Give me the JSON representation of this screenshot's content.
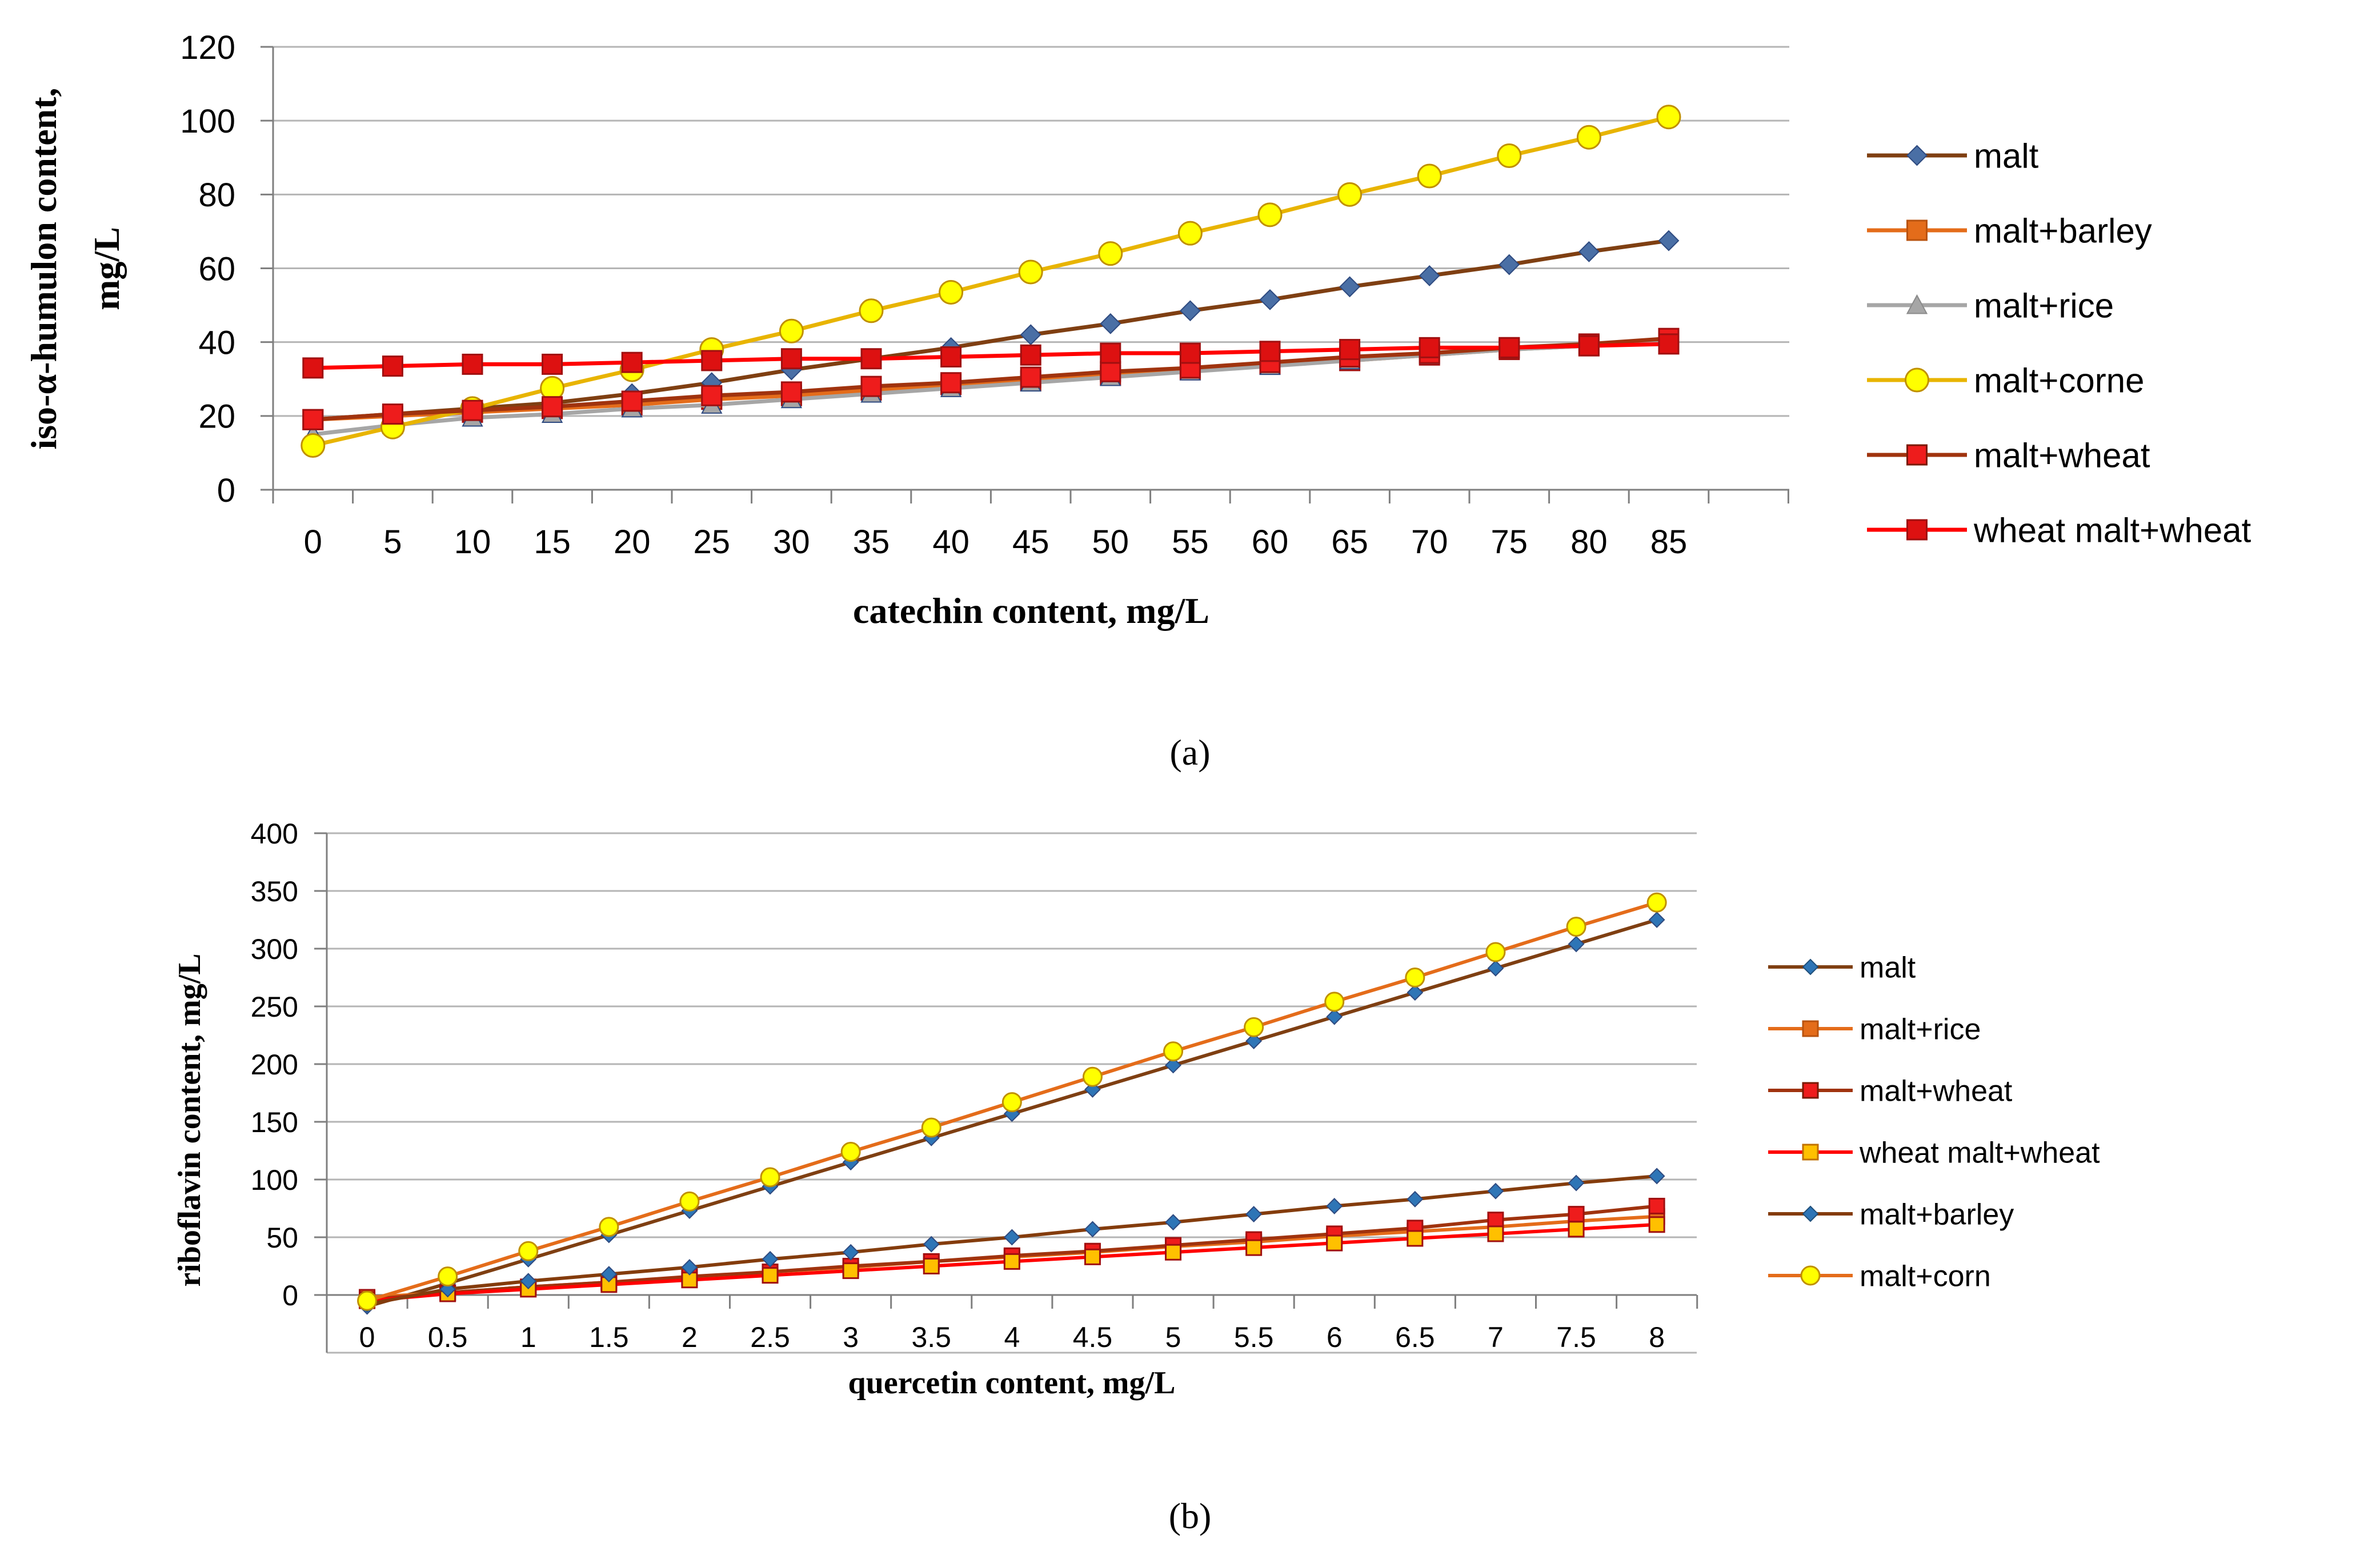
{
  "chart_data": [
    {
      "id": "a",
      "type": "line",
      "caption": "(a)",
      "xlabel": "catechin content, mg/L",
      "ylabel_lines": [
        "iso-α-humulon content,",
        "mg/L"
      ],
      "ylim": [
        0,
        120
      ],
      "yticks": [
        0,
        20,
        40,
        60,
        80,
        100,
        120
      ],
      "categories": [
        "0",
        "5",
        "10",
        "15",
        "20",
        "25",
        "30",
        "35",
        "40",
        "45",
        "50",
        "55",
        "60",
        "65",
        "70",
        "75",
        "80",
        "85"
      ],
      "grid": "horizontal",
      "legend_position": "right",
      "series": [
        {
          "name": "malt",
          "color": "#7f3f12",
          "marker": "diamond",
          "marker_fill": "#4a6fa5",
          "values": [
            19,
            20.5,
            22,
            23.5,
            26,
            29,
            32.5,
            35.5,
            38.5,
            42,
            45,
            48.5,
            51.5,
            55,
            58,
            61,
            64.5,
            67.5
          ]
        },
        {
          "name": "malt+barley",
          "color": "#e46c1a",
          "marker": "square",
          "marker_fill": "#e46c1a",
          "values": [
            19,
            20,
            21,
            22,
            23,
            24.5,
            25.5,
            27,
            28.5,
            29.5,
            31,
            32.5,
            34,
            35,
            36.5,
            38,
            39,
            40
          ]
        },
        {
          "name": "malt+rice",
          "color": "#a6a6a6",
          "marker": "triangle",
          "marker_fill": "#a6a6a6",
          "values": [
            15,
            17.5,
            19.5,
            20.5,
            22,
            23,
            24.5,
            26,
            27.5,
            29,
            30.5,
            32,
            33.5,
            35,
            36.5,
            38,
            39,
            40
          ]
        },
        {
          "name": "malt+corne",
          "color": "#e8b400",
          "marker": "circle",
          "marker_fill": "#ffff00",
          "values": [
            12,
            17,
            22,
            27.5,
            32.5,
            38,
            43,
            48.5,
            53.5,
            59,
            64,
            69.5,
            74.5,
            80,
            85,
            90.5,
            95.5,
            101
          ]
        },
        {
          "name": "malt+wheat",
          "color": "#a0330e",
          "marker": "square",
          "marker_fill": "#ee1c1c",
          "values": [
            19,
            20.5,
            21.5,
            22.5,
            24,
            25.5,
            26.5,
            28,
            29,
            30.5,
            32,
            33,
            34.5,
            36,
            37,
            38.5,
            39.5,
            41
          ]
        },
        {
          "name": "wheat malt+wheat",
          "color": "#ff0000",
          "marker": "square",
          "marker_fill": "#dd1111",
          "values": [
            33,
            33.5,
            34,
            34,
            34.5,
            35,
            35.5,
            35.5,
            36,
            36.5,
            37,
            37,
            37.5,
            38,
            38.5,
            38.5,
            39,
            39.5
          ]
        }
      ]
    },
    {
      "id": "b",
      "type": "line",
      "caption": "(b)",
      "xlabel": "quercetin content, mg/L",
      "ylabel_lines": [
        "riboflavin content, mg/L"
      ],
      "ylim": [
        -50,
        400
      ],
      "yticks": [
        0,
        50,
        100,
        150,
        200,
        250,
        300,
        350,
        400
      ],
      "categories": [
        "0",
        "0.5",
        "1",
        "1.5",
        "2",
        "2.5",
        "3",
        "3.5",
        "4",
        "4.5",
        "5",
        "5.5",
        "6",
        "6.5",
        "7",
        "7.5",
        "8"
      ],
      "grid": "horizontal",
      "legend_position": "right",
      "series": [
        {
          "name": "malt",
          "color": "#7f3f12",
          "marker": "diamond",
          "marker_fill": "#2e75b6",
          "values": [
            -10,
            10,
            31,
            52,
            73,
            94,
            115,
            136,
            157,
            178,
            199,
            220,
            241,
            262,
            283,
            304,
            325
          ]
        },
        {
          "name": "malt+rice",
          "color": "#e46c1a",
          "marker": "square",
          "marker_fill": "#e46c1a",
          "values": [
            -2,
            2,
            7,
            11,
            15,
            20,
            24,
            29,
            33,
            37,
            42,
            46,
            51,
            55,
            59,
            64,
            68
          ]
        },
        {
          "name": "malt+wheat",
          "color": "#a0330e",
          "marker": "square",
          "marker_fill": "#ee1c1c",
          "values": [
            -4,
            2,
            7,
            11,
            16,
            20,
            25,
            29,
            34,
            38,
            43,
            48,
            53,
            58,
            65,
            70,
            77
          ]
        },
        {
          "name": "wheat malt+wheat",
          "color": "#ff0000",
          "marker": "square",
          "marker_fill": "#ffc000",
          "values": [
            -5,
            1,
            5,
            9,
            13,
            17,
            21,
            25,
            29,
            33,
            37,
            41,
            45,
            49,
            53,
            57,
            61
          ]
        },
        {
          "name": "malt+barley",
          "color": "#843c0c",
          "marker": "diamond",
          "marker_fill": "#2e75b6",
          "values": [
            -8,
            5,
            12,
            18,
            24,
            31,
            37,
            44,
            50,
            57,
            63,
            70,
            77,
            83,
            90,
            97,
            103
          ]
        },
        {
          "name": "malt+corn",
          "color": "#e46c1a",
          "marker": "circle",
          "marker_fill": "#ffff00",
          "values": [
            -5,
            16,
            38,
            59,
            81,
            102,
            124,
            145,
            167,
            189,
            211,
            232,
            254,
            275,
            297,
            319,
            340
          ]
        }
      ]
    }
  ]
}
